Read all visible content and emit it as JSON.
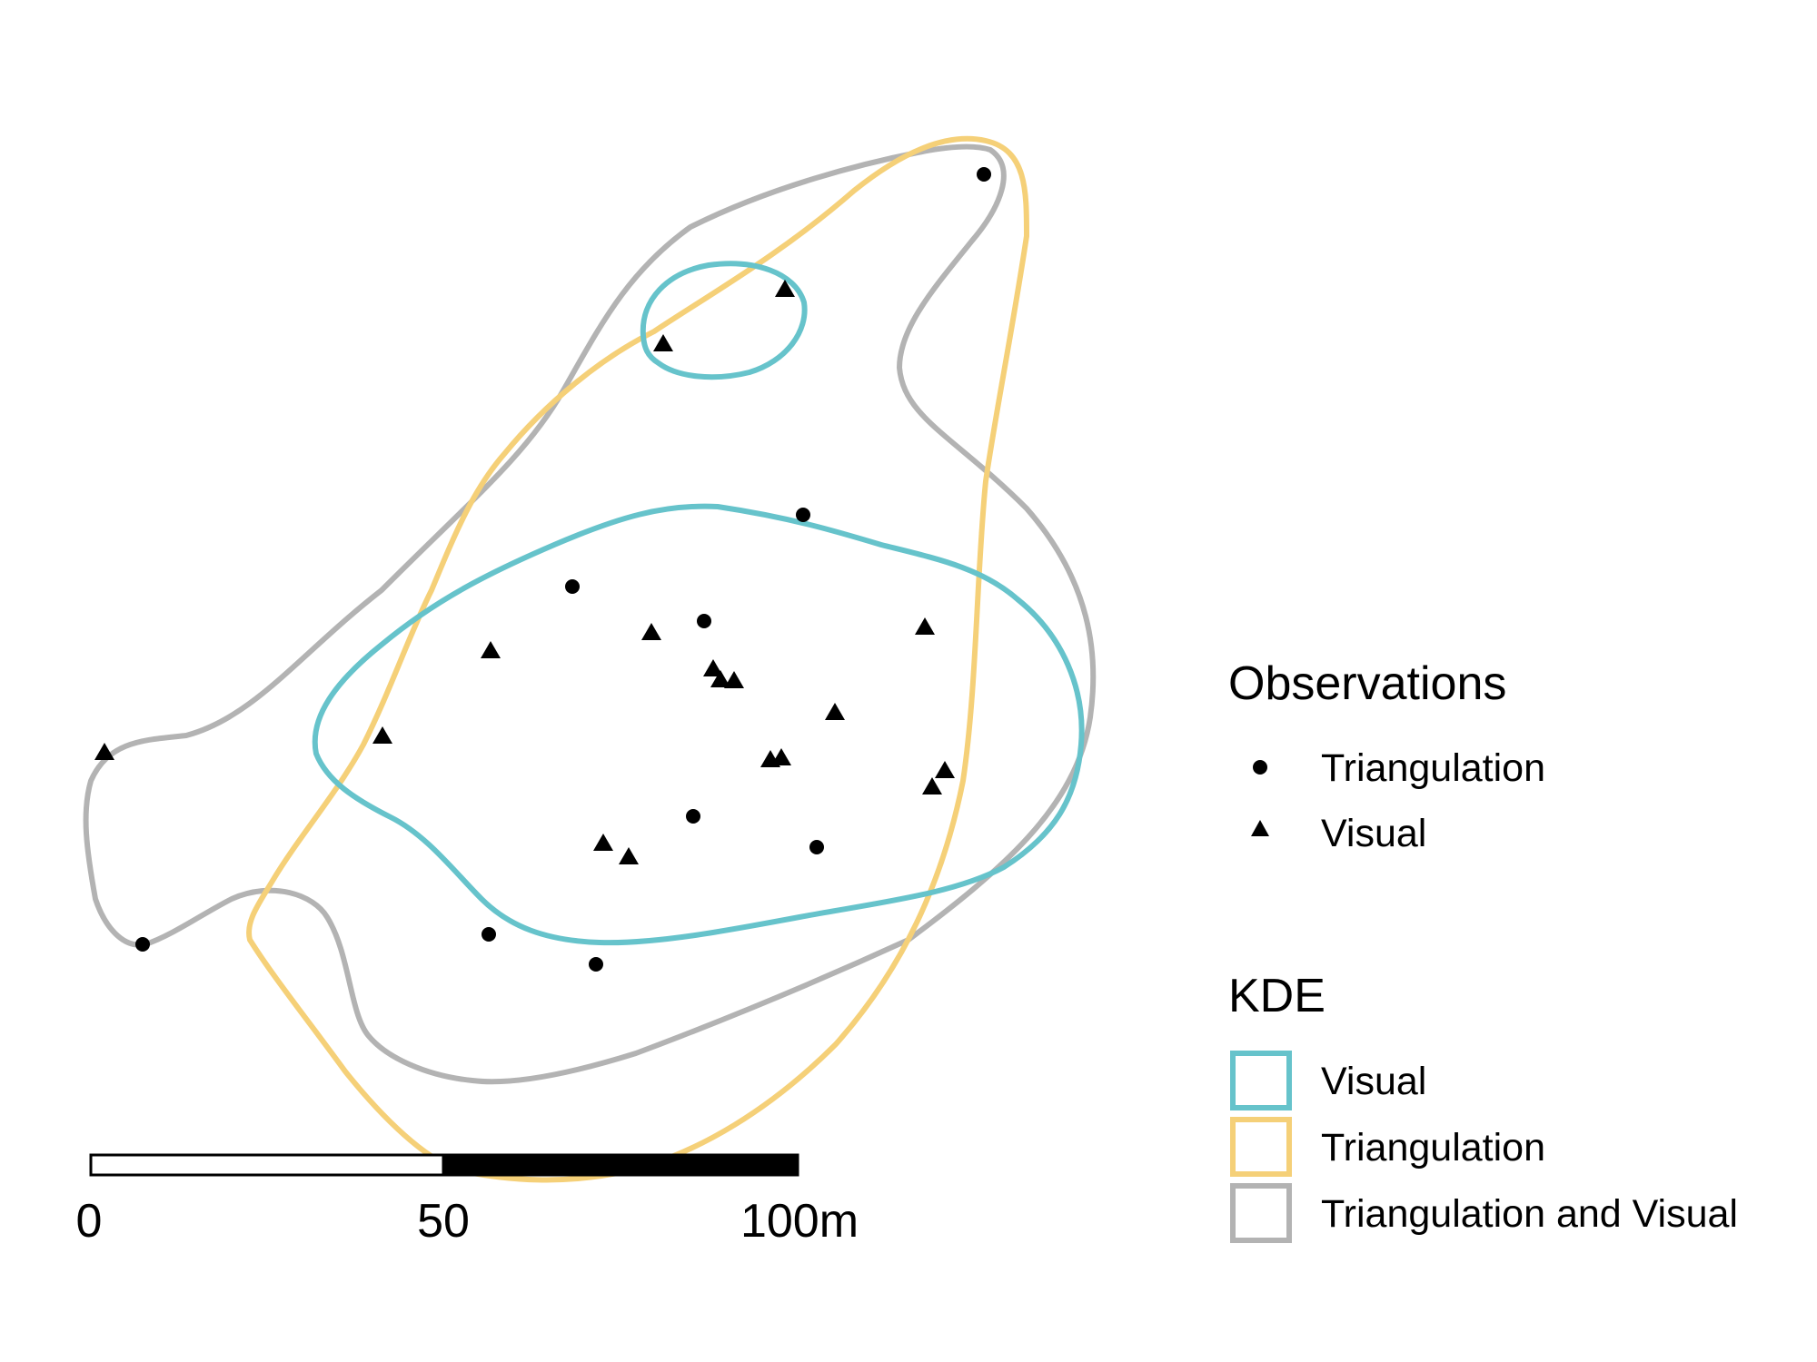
{
  "legend": {
    "observations": {
      "title": "Observations",
      "items": [
        {
          "label": "Triangulation",
          "symbol": "circle-icon"
        },
        {
          "label": "Visual",
          "symbol": "triangle-icon"
        }
      ]
    },
    "kde": {
      "title": "KDE",
      "items": [
        {
          "label": "Visual",
          "color": "#66c3cb"
        },
        {
          "label": "Triangulation",
          "color": "#f5d078"
        },
        {
          "label": "Triangulation and Visual",
          "color": "#b3b3b3"
        }
      ]
    }
  },
  "scale_bar": {
    "labels": [
      "0",
      "50",
      "100m"
    ]
  }
}
